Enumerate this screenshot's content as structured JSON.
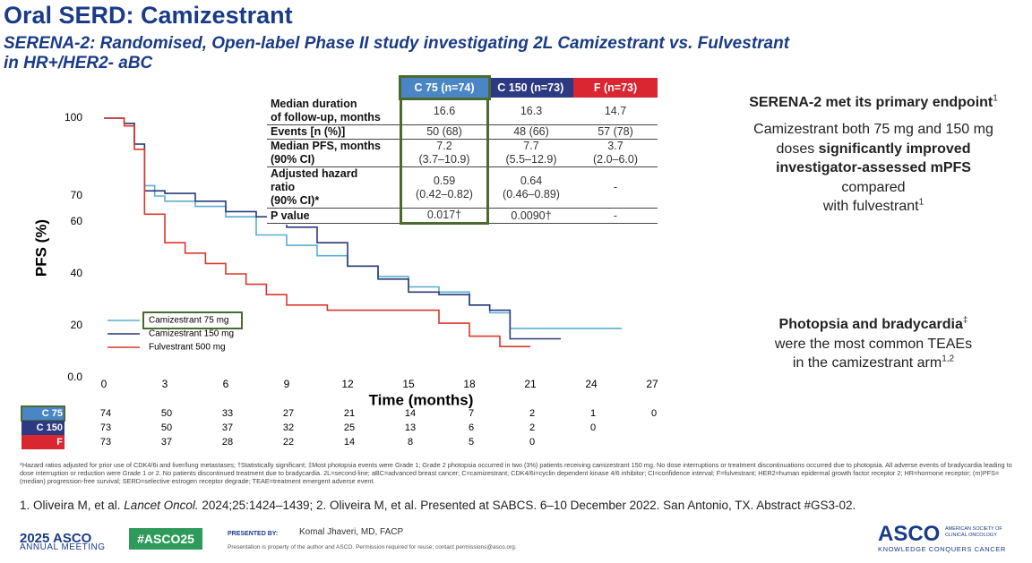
{
  "header": {
    "title": "Oral SERD: Camizestrant",
    "subtitle_lines": [
      "SERENA-2: Randomised, Open-label Phase II study investigating 2L Camizestrant vs. Fulvestrant",
      "in HR+/HER2- aBC"
    ]
  },
  "chart_data": {
    "type": "line",
    "step": true,
    "x_label": "Time (months)",
    "y_label": "PFS (%)",
    "xlim": [
      0,
      27
    ],
    "xticks": [
      0,
      3,
      6,
      9,
      12,
      15,
      18,
      21,
      24,
      27
    ],
    "ylim": [
      0,
      100
    ],
    "yticks": [
      100,
      70,
      60,
      40,
      20,
      {
        "value": 0,
        "label": "0.0"
      }
    ],
    "legend": "bottom-left",
    "series": [
      {
        "name": "Camizestrant 75 mg",
        "color": "#5aaed0",
        "x": [
          0,
          1,
          1.5,
          2,
          2.5,
          3,
          4.5,
          6,
          7.5,
          9,
          10.5,
          12,
          13.5,
          15,
          16.5,
          18,
          19,
          20,
          25.5
        ],
        "values": [
          100,
          98,
          90,
          74,
          70,
          68,
          66,
          62,
          55,
          51,
          47,
          43,
          39,
          35,
          33,
          28,
          25,
          19,
          19
        ]
      },
      {
        "name": "Camizestrant 150 mg",
        "color": "#2b3a7a",
        "x": [
          0,
          1,
          1.5,
          2,
          3,
          4.5,
          6,
          7.5,
          9,
          10.5,
          12,
          13.5,
          15,
          16.5,
          18,
          19,
          20,
          22.5
        ],
        "values": [
          100,
          98,
          90,
          72,
          71,
          68,
          64,
          62,
          58,
          52,
          43,
          38,
          33,
          32,
          28,
          26,
          15,
          15
        ]
      },
      {
        "name": "Fulvestrant 500 mg",
        "color": "#d9382b",
        "x": [
          0,
          1,
          1.5,
          2,
          3,
          4,
          5,
          6,
          7,
          8,
          9,
          11,
          14,
          16.5,
          18,
          19.5,
          21
        ],
        "values": [
          100,
          97,
          88,
          63,
          52,
          48,
          44,
          40,
          36,
          32,
          28,
          26,
          26,
          21,
          16,
          12,
          12
        ]
      }
    ]
  },
  "risk_table": {
    "rows": [
      {
        "label": "C 75",
        "color": "#4a86c5",
        "values": [
          74,
          50,
          33,
          27,
          21,
          14,
          7,
          2,
          1,
          0
        ]
      },
      {
        "label": "C 150",
        "color": "#2c3a84",
        "values": [
          73,
          50,
          37,
          32,
          25,
          13,
          6,
          2,
          0
        ]
      },
      {
        "label": "F",
        "color": "#d92630",
        "values": [
          73,
          37,
          28,
          22,
          14,
          8,
          5,
          0
        ]
      }
    ]
  },
  "summary_table": {
    "headers": [
      {
        "text": "C 75 (n=74)",
        "color": "#4a86c5"
      },
      {
        "text": "C 150 (n=73)",
        "color": "#2c3a84"
      },
      {
        "text": "F (n=73)",
        "color": "#d92630"
      }
    ],
    "rows": [
      {
        "label": [
          "Median duration",
          "of follow-up, months"
        ],
        "cells": [
          [
            "16.6"
          ],
          [
            "16.3"
          ],
          [
            "14.7"
          ]
        ]
      },
      {
        "label": [
          "Events [n (%)]"
        ],
        "cells": [
          [
            "50 (68)"
          ],
          [
            "48 (66)"
          ],
          [
            "57 (78)"
          ]
        ]
      },
      {
        "label": [
          "Median PFS, months",
          "(90% CI)"
        ],
        "cells": [
          [
            "7.2",
            "(3.7–10.9)"
          ],
          [
            "7.7",
            "(5.5–12.9)"
          ],
          [
            "3.7",
            "(2.0–6.0)"
          ]
        ]
      },
      {
        "label": [
          "Adjusted hazard",
          "ratio",
          "(90% CI)*"
        ],
        "cells": [
          [
            "0.59",
            "(0.42–0.82)"
          ],
          [
            "0.64",
            "(0.46–0.89)"
          ],
          [
            "-"
          ]
        ]
      },
      {
        "label": [
          "P value"
        ],
        "cells": [
          [
            "0.017†"
          ],
          [
            "0.0090†"
          ],
          [
            "-"
          ]
        ]
      }
    ]
  },
  "right_panel": [
    [
      [
        {
          "text": "SERENA-2 met its primary endpoint",
          "style": "bold"
        },
        {
          "text": "1",
          "style": "sup"
        }
      ]
    ],
    [
      [
        {
          "text": "Camizestrant both 75 mg and 150 mg"
        }
      ],
      [
        {
          "text": "doses "
        },
        {
          "text": "significantly improved",
          "style": "bold"
        }
      ],
      [
        {
          "text": "investigator-assessed mPFS",
          "style": "bold"
        }
      ],
      [
        {
          "text": "compared"
        }
      ],
      [
        {
          "text": "with fulvestrant"
        },
        {
          "text": "1",
          "style": "sup"
        }
      ]
    ],
    [
      [
        {
          "text": "Photopsia and bradycardia",
          "style": "bold"
        },
        {
          "text": "‡",
          "style": "sup"
        }
      ],
      [
        {
          "text": "were the most common TEAEs"
        }
      ],
      [
        {
          "text": "in the camizestrant arm"
        },
        {
          "text": "1,2",
          "style": "sup"
        }
      ]
    ]
  ],
  "footnote": "*Hazard ratios adjusted for prior use of CDK4/6i and liver/lung metastases; †Statistically significant; ‡Most photopsia events were Grade 1; Grade 2 photopsia occurred in two (3%) patients receiving camizestrant 150 mg. No dose interruptions or treatment discontinuations occurred due to photopsia. All adverse events of bradycardia leading to dose interruption or reduction were Grade 1 or 2. No patients discontinued treatment due to bradycardia. 2L=second-line; aBC=advanced breast cancer; C=camizestrant; CDK4/6i=cyclin dependent kinase 4/6 inhibitor; CI=confidence interval; F=fulvestrant; HER2=human epidermal growth factor receptor 2; HR=hormone receptor; (m)PFS=(median) progression-free survival; SERD=selective estrogen receptor degrade; TEAE=treatment emergent adverse event.",
  "reference": [
    {
      "text": "1. Oliveira M, et al. "
    },
    {
      "text": "Lancet Oncol.",
      "style": "italic"
    },
    {
      "text": " 2024;25:1424–1439; 2. Oliveira M, et al. Presented at SABCS. 6–10 December 2022. San Antonio, TX. Abstract #GS3-02."
    }
  ],
  "footer": {
    "meeting_year": "2025 ASCO",
    "meeting": "ANNUAL MEETING",
    "hashtag": "#ASCO25",
    "presented_by": "PRESENTED BY:",
    "presenter": "Komal Jhaveri, MD, FACP",
    "notice": "Presentation is property of the author and ASCO. Permission required for reuse; contact permissions@asco.org.",
    "logo": "ASCO",
    "society": [
      "AMERICAN SOCIETY OF",
      "CLINICAL ONCOLOGY"
    ],
    "tagline": "KNOWLEDGE CONQUERS CANCER"
  }
}
